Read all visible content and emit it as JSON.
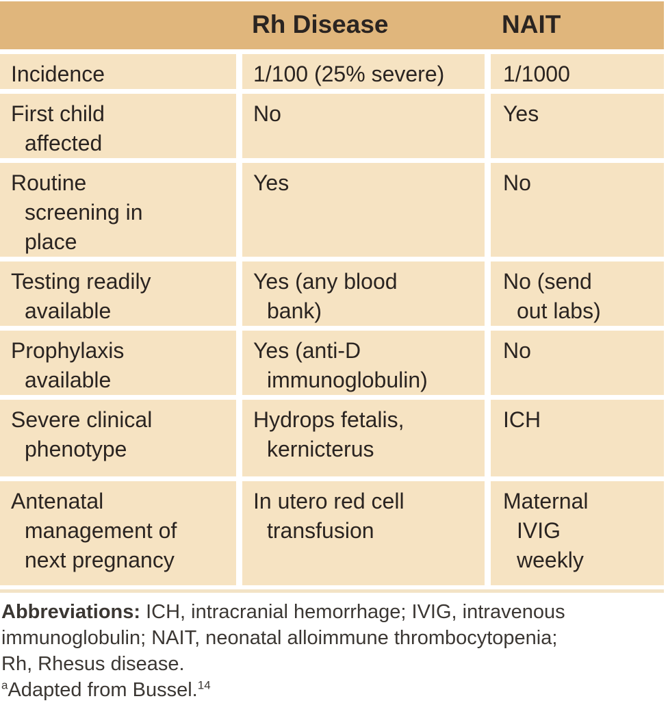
{
  "table": {
    "header": {
      "rh_label": "Rh Disease",
      "nait_label": "NAIT"
    },
    "rows": [
      {
        "label": "Incidence",
        "rh": "1/100 (25% severe)",
        "nait": "1/1000"
      },
      {
        "label": "First child affected",
        "rh": "No",
        "nait": "Yes"
      },
      {
        "label": "Routine screening in place",
        "rh": "Yes",
        "nait": "No"
      },
      {
        "label": "Testing readily available",
        "rh": "Yes (any blood bank)",
        "nait": "No (send out labs)"
      },
      {
        "label": "Prophylaxis available",
        "rh": "Yes (anti-D immunoglobulin)",
        "nait": "No"
      },
      {
        "label": "Severe clinical phenotype",
        "rh": "Hydrops fetalis, kernicterus",
        "nait": "ICH"
      },
      {
        "label": "Antenatal management of next pregnancy",
        "rh": "In utero red cell transfusion",
        "nait": "Maternal IVIG weekly"
      }
    ]
  },
  "footnotes": {
    "abbreviations_label": "Abbreviations:",
    "abbreviations_text": " ICH, intracranial hemorrhage; IVIG, intravenous immunoglobulin; NAIT, neonatal alloimmune thrombocytopenia; Rh, Rhesus disease.",
    "source_marker": "a",
    "source_text": "Adapted from Bussel.",
    "source_reference": "14"
  },
  "colors": {
    "header_bg": "#e0b67c",
    "cell_bg": "#f6e3c2",
    "text": "#2a2421",
    "footnote_text": "#3b3733",
    "background": "#ffffff"
  }
}
